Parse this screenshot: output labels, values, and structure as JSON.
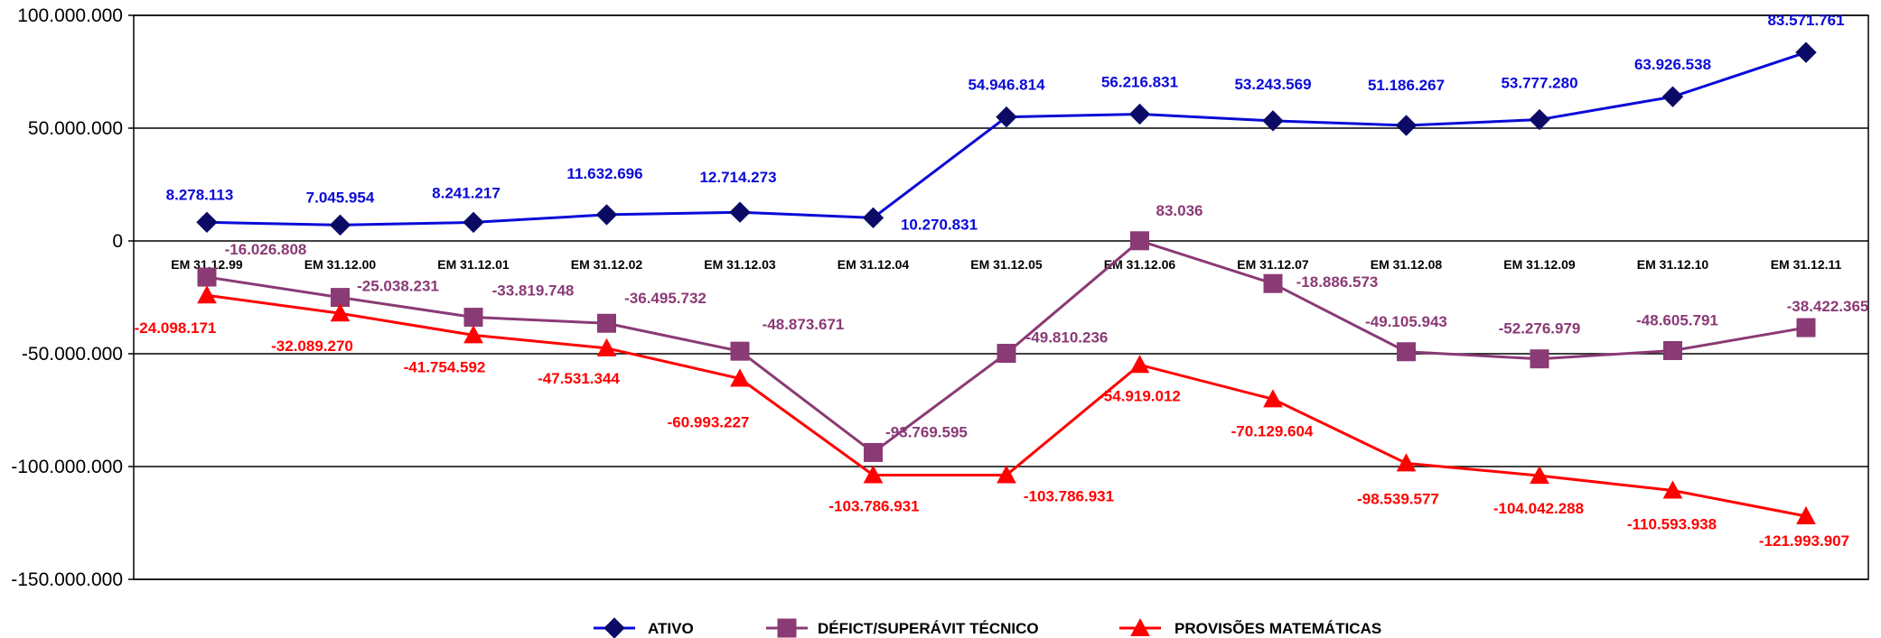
{
  "chart_data": {
    "type": "line",
    "categories": [
      "EM 31.12.99",
      "EM 31.12.00",
      "EM 31.12.01",
      "EM 31.12.02",
      "EM 31.12.03",
      "EM 31.12.04",
      "EM 31.12.05",
      "EM 31.12.06",
      "EM 31.12.07",
      "EM 31.12.08",
      "EM 31.12.09",
      "EM 31.12.10",
      "EM 31.12.11"
    ],
    "ylim": [
      -150000000,
      100000000
    ],
    "yticks": [
      100000000,
      50000000,
      0,
      -50000000,
      -100000000,
      -150000000
    ],
    "ytick_labels": [
      "100.000.000",
      "50.000.000",
      "0",
      "-50.000.000",
      "-100.000.000",
      "-150.000.000"
    ],
    "grid": true,
    "legend_position": "bottom",
    "series": [
      {
        "name": "ATIVO",
        "color": "#0a0ad8",
        "marker_color": "#0b0b66",
        "marker": "diamond",
        "values": [
          8278113,
          7045954,
          8241217,
          11632696,
          12714273,
          10270831,
          54946814,
          56216831,
          53243569,
          51186267,
          53777280,
          63926538,
          83571761
        ],
        "labels": [
          "8.278.113",
          "7.045.954",
          "8.241.217",
          "11.632.696",
          "12.714.273",
          "10.270.831",
          "54.946.814",
          "56.216.831",
          "53.243.569",
          "51.186.267",
          "53.777.280",
          "63.926.538",
          "83.571.761"
        ]
      },
      {
        "name": "DÉFICT/SUPERÁVIT TÉCNICO",
        "color": "#8a3a75",
        "marker_color": "#8a3a75",
        "marker": "square",
        "values": [
          -16026808,
          -25038231,
          -33819748,
          -36495732,
          -48873671,
          -93769595,
          -49810236,
          83036,
          -18886573,
          -49105943,
          -52276979,
          -48605791,
          -38422365
        ],
        "labels": [
          "-16.026.808",
          "-25.038.231",
          "-33.819.748",
          "-36.495.732",
          "-48.873.671",
          "-93.769.595",
          "-49.810.236",
          "83.036",
          "-18.886.573",
          "-49.105.943",
          "-52.276.979",
          "-48.605.791",
          "-38.422.365"
        ]
      },
      {
        "name": "PROVISÕES MATEMÁTICAS",
        "color": "#ff0000",
        "marker_color": "#ff0000",
        "marker": "triangle",
        "values": [
          -24098171,
          -32089270,
          -41754592,
          -47531344,
          -60993227,
          -103786931,
          -103786931,
          -54919012,
          -70129604,
          -98539577,
          -104042288,
          -110593938,
          -121993907
        ],
        "labels": [
          "-24.098.171",
          "-32.089.270",
          "-41.754.592",
          "-47.531.344",
          "-60.993.227",
          "-103.786.931",
          "-103.786.931",
          "-54.919.012",
          "-70.129.604",
          "-98.539.577",
          "-104.042.288",
          "-110.593.938",
          "-121.993.907"
        ]
      }
    ]
  }
}
